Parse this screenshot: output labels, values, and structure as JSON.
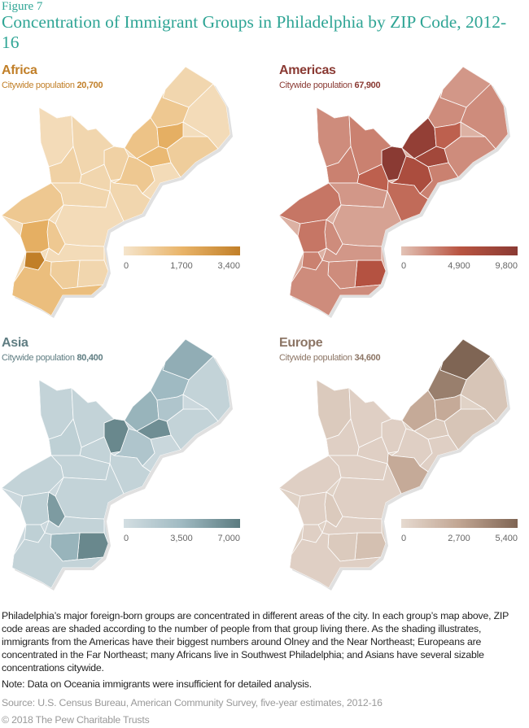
{
  "figure_label": "Figure 7",
  "title": "Concentration of Immigrant Groups in Philadelphia by ZIP Code, 2012-16",
  "maps": [
    {
      "name": "Africa",
      "subtitle": "Citywide population",
      "population": "20,700",
      "accent": "#c17f28",
      "scale": [
        "#f5e5cc",
        "#e9b469",
        "#c17f28"
      ],
      "ticks": [
        "0",
        "1,700",
        "3,400"
      ],
      "zip_levels": [
        0.15,
        0.1,
        0.3,
        0.35,
        0.55,
        0.45,
        0.25,
        0.1,
        0.2,
        0.3,
        0.15,
        0.15,
        0.1,
        0.15,
        0.2,
        0.15,
        0.3,
        0.1,
        0.3,
        0.55,
        1.0,
        0.15,
        0.25,
        0.4,
        0.1
      ]
    },
    {
      "name": "Americas",
      "subtitle": "Citywide population",
      "population": "67,900",
      "accent": "#8a3a33",
      "scale": [
        "#e3c3b6",
        "#b95542",
        "#8a3a33"
      ],
      "ticks": [
        "0",
        "4,900",
        "9,800"
      ],
      "zip_levels": [
        0.2,
        0.25,
        0.25,
        0.9,
        0.45,
        0.75,
        0.25,
        0.3,
        1.0,
        0.65,
        0.4,
        0.45,
        0.25,
        0.3,
        0.3,
        0.2,
        0.35,
        0.15,
        0.25,
        0.35,
        0.3,
        0.55,
        0.25,
        0.25,
        0.2
      ]
    },
    {
      "name": "Asia",
      "subtitle": "Citywide population",
      "population": "80,400",
      "accent": "#5f7d82",
      "scale": [
        "#d3dee2",
        "#9fbac2",
        "#5b7b80"
      ],
      "ticks": [
        "0",
        "3,500",
        "7,000"
      ],
      "zip_levels": [
        0.6,
        0.15,
        0.5,
        0.55,
        0.35,
        0.85,
        0.15,
        0.1,
        0.9,
        0.35,
        0.15,
        0.15,
        0.15,
        0.15,
        0.2,
        0.15,
        0.15,
        0.15,
        0.75,
        0.2,
        0.2,
        0.9,
        0.55,
        0.15,
        0.15
      ]
    },
    {
      "name": "Europe",
      "subtitle": "Citywide population",
      "population": "34,600",
      "accent": "#8c7565",
      "scale": [
        "#e6dad0",
        "#c1a592",
        "#7f6554"
      ],
      "ticks": [
        "0",
        "2,700",
        "5,400"
      ],
      "zip_levels": [
        1.0,
        0.2,
        0.8,
        0.45,
        0.45,
        0.15,
        0.2,
        0.1,
        0.1,
        0.1,
        0.45,
        0.1,
        0.15,
        0.1,
        0.1,
        0.1,
        0.1,
        0.1,
        0.15,
        0.1,
        0.1,
        0.25,
        0.15,
        0.1,
        0.1
      ]
    }
  ],
  "description": "Philadelphia’s major foreign-born groups are concentrated in different areas of the city. In each group’s map above, ZIP code areas are shaded according to the number of people from that group living there. As the shading illustrates, immigrants from the Americas have their biggest numbers around Olney and the Near Northeast; Europeans are concentrated in the Far Northeast; many Africans live in Southwest Philadelphia; and Asians have several sizable concentrations citywide.",
  "note": "Note: Data on Oceania immigrants were insufficient for detailed analysis.",
  "source": "Source: U.S. Census Bureau, American Community Survey, five-year estimates, 2012-16",
  "copyright": "© 2018 The Pew Charitable Trusts"
}
